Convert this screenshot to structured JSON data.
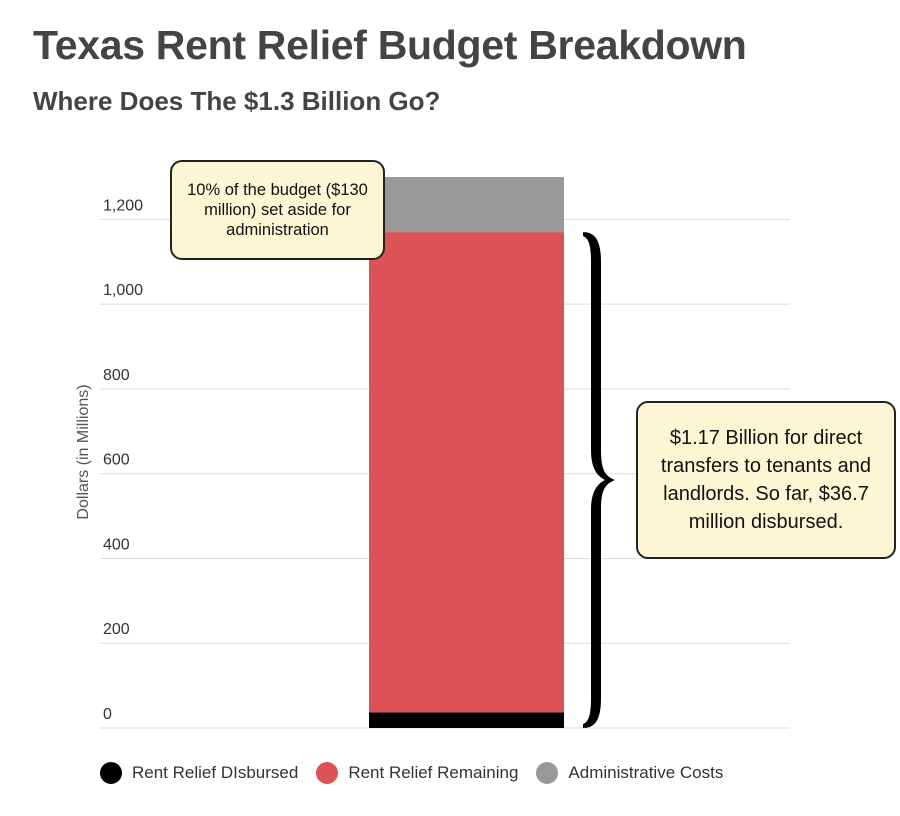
{
  "title": "Texas Rent Relief Budget Breakdown",
  "subtitle": "Where Does The $1.3 Billion Go?",
  "chart_data": {
    "type": "bar",
    "stacked": true,
    "categories": [
      ""
    ],
    "series": [
      {
        "name": "Rent Relief DIsbursed",
        "values": [
          36.7
        ],
        "color": "#000000"
      },
      {
        "name": "Rent Relief Remaining",
        "values": [
          1133.3
        ],
        "color": "#dc5257"
      },
      {
        "name": "Administrative Costs",
        "values": [
          130
        ],
        "color": "#999999"
      }
    ],
    "ylabel": "Dollars (in Millions)",
    "xlabel": "",
    "ylim": [
      0,
      1300
    ],
    "yticks": [
      0,
      200,
      400,
      600,
      800,
      1000,
      1200
    ],
    "ytick_labels": [
      "0",
      "200",
      "400",
      "600",
      "800",
      "1,000",
      "1,200"
    ],
    "grid": true,
    "legend_position": "bottom",
    "annotations": [
      "10% of the budget ($130 million) set aside for administration",
      "$1.17 Billion for direct transfers to tenants and landlords. So far, $36.7 million disbursed."
    ]
  },
  "legend": {
    "items": [
      {
        "label": "Rent Relief DIsbursed",
        "color": "#000000"
      },
      {
        "label": "Rent Relief Remaining",
        "color": "#dc5257"
      },
      {
        "label": "Administrative Costs",
        "color": "#999999"
      }
    ]
  },
  "callouts": {
    "admin": "10% of the budget ($130 million) set aside for administration",
    "relief": "$1.17 Billion for direct transfers to tenants and landlords. So far, $36.7 million disbursed."
  }
}
